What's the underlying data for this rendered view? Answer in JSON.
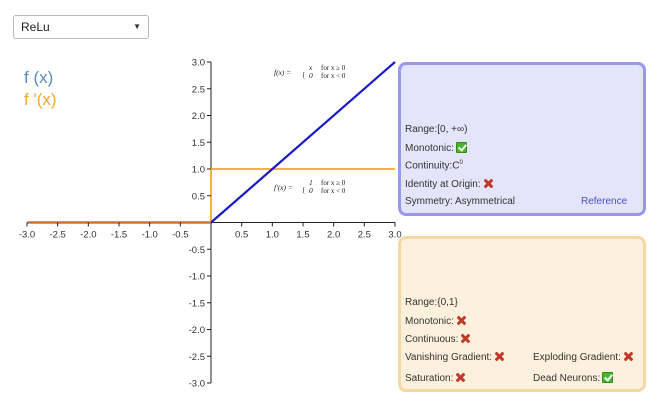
{
  "selector": {
    "value": "ReLu"
  },
  "legend": {
    "f": "f (x)",
    "fprime": "f '(x)"
  },
  "colors": {
    "f_curve": "#1a1ac8",
    "fprime_curve": "#f0a830",
    "overlap_curve": "#d06a2a"
  },
  "chart_data": {
    "type": "line",
    "xlim": [
      -3.0,
      3.0
    ],
    "ylim": [
      -3.0,
      3.0
    ],
    "x_ticks": [
      "-3.0",
      "-2.5",
      "-2.0",
      "-1.5",
      "-1.0",
      "-0.5",
      "0.5",
      "1.0",
      "1.5",
      "2.0",
      "2.5",
      "3.0"
    ],
    "y_ticks": [
      "3.0",
      "2.5",
      "2.0",
      "1.5",
      "1.0",
      "0.5",
      "-0.5",
      "-1.0",
      "-1.5",
      "-2.0",
      "-2.5",
      "-3.0"
    ],
    "series": [
      {
        "color": "#1a1ac8",
        "x": [
          -3.0,
          0.0,
          3.0
        ],
        "y": [
          0.0,
          0.0,
          3.0
        ]
      },
      {
        "color": "#f0a830",
        "x": [
          -3.0,
          0.0,
          0.0,
          3.0
        ],
        "y": [
          0.0,
          0.0,
          1.0,
          1.0
        ]
      }
    ],
    "annotations": [
      {
        "lhs": "f(x) = ",
        "cases": [
          {
            "expr": "x",
            "cond": "for x ≥ 0"
          },
          {
            "expr": "0",
            "cond": "for x < 0"
          }
        ]
      },
      {
        "lhs": "f'(x) = ",
        "cases": [
          {
            "expr": "1",
            "cond": "for x ≥ 0"
          },
          {
            "expr": "0",
            "cond": "for x < 0"
          }
        ]
      }
    ]
  },
  "f_panel": {
    "range_label": "Range:",
    "range_value": "[0, +∞)",
    "monotonic_label": "Monotonic:",
    "monotonic": true,
    "continuity_label": "Continuity:",
    "continuity_value": "C",
    "continuity_sup": "0",
    "identity_label": "Identity at Origin:",
    "identity": false,
    "symmetry_label": "Symmetry:",
    "symmetry_value": "Asymmetrical",
    "reference_label": "Reference"
  },
  "fp_panel": {
    "range_label": "Range:",
    "range_value": "{0,1}",
    "monotonic_label": "Monotonic:",
    "monotonic": false,
    "continuous_label": "Continuous:",
    "continuous": false,
    "vanishing_label": "Vanishing Gradient:",
    "vanishing": false,
    "exploding_label": "Exploding Gradient:",
    "exploding": false,
    "saturation_label": "Saturation:",
    "saturation": false,
    "dead_label": "Dead Neurons:",
    "dead": true
  }
}
